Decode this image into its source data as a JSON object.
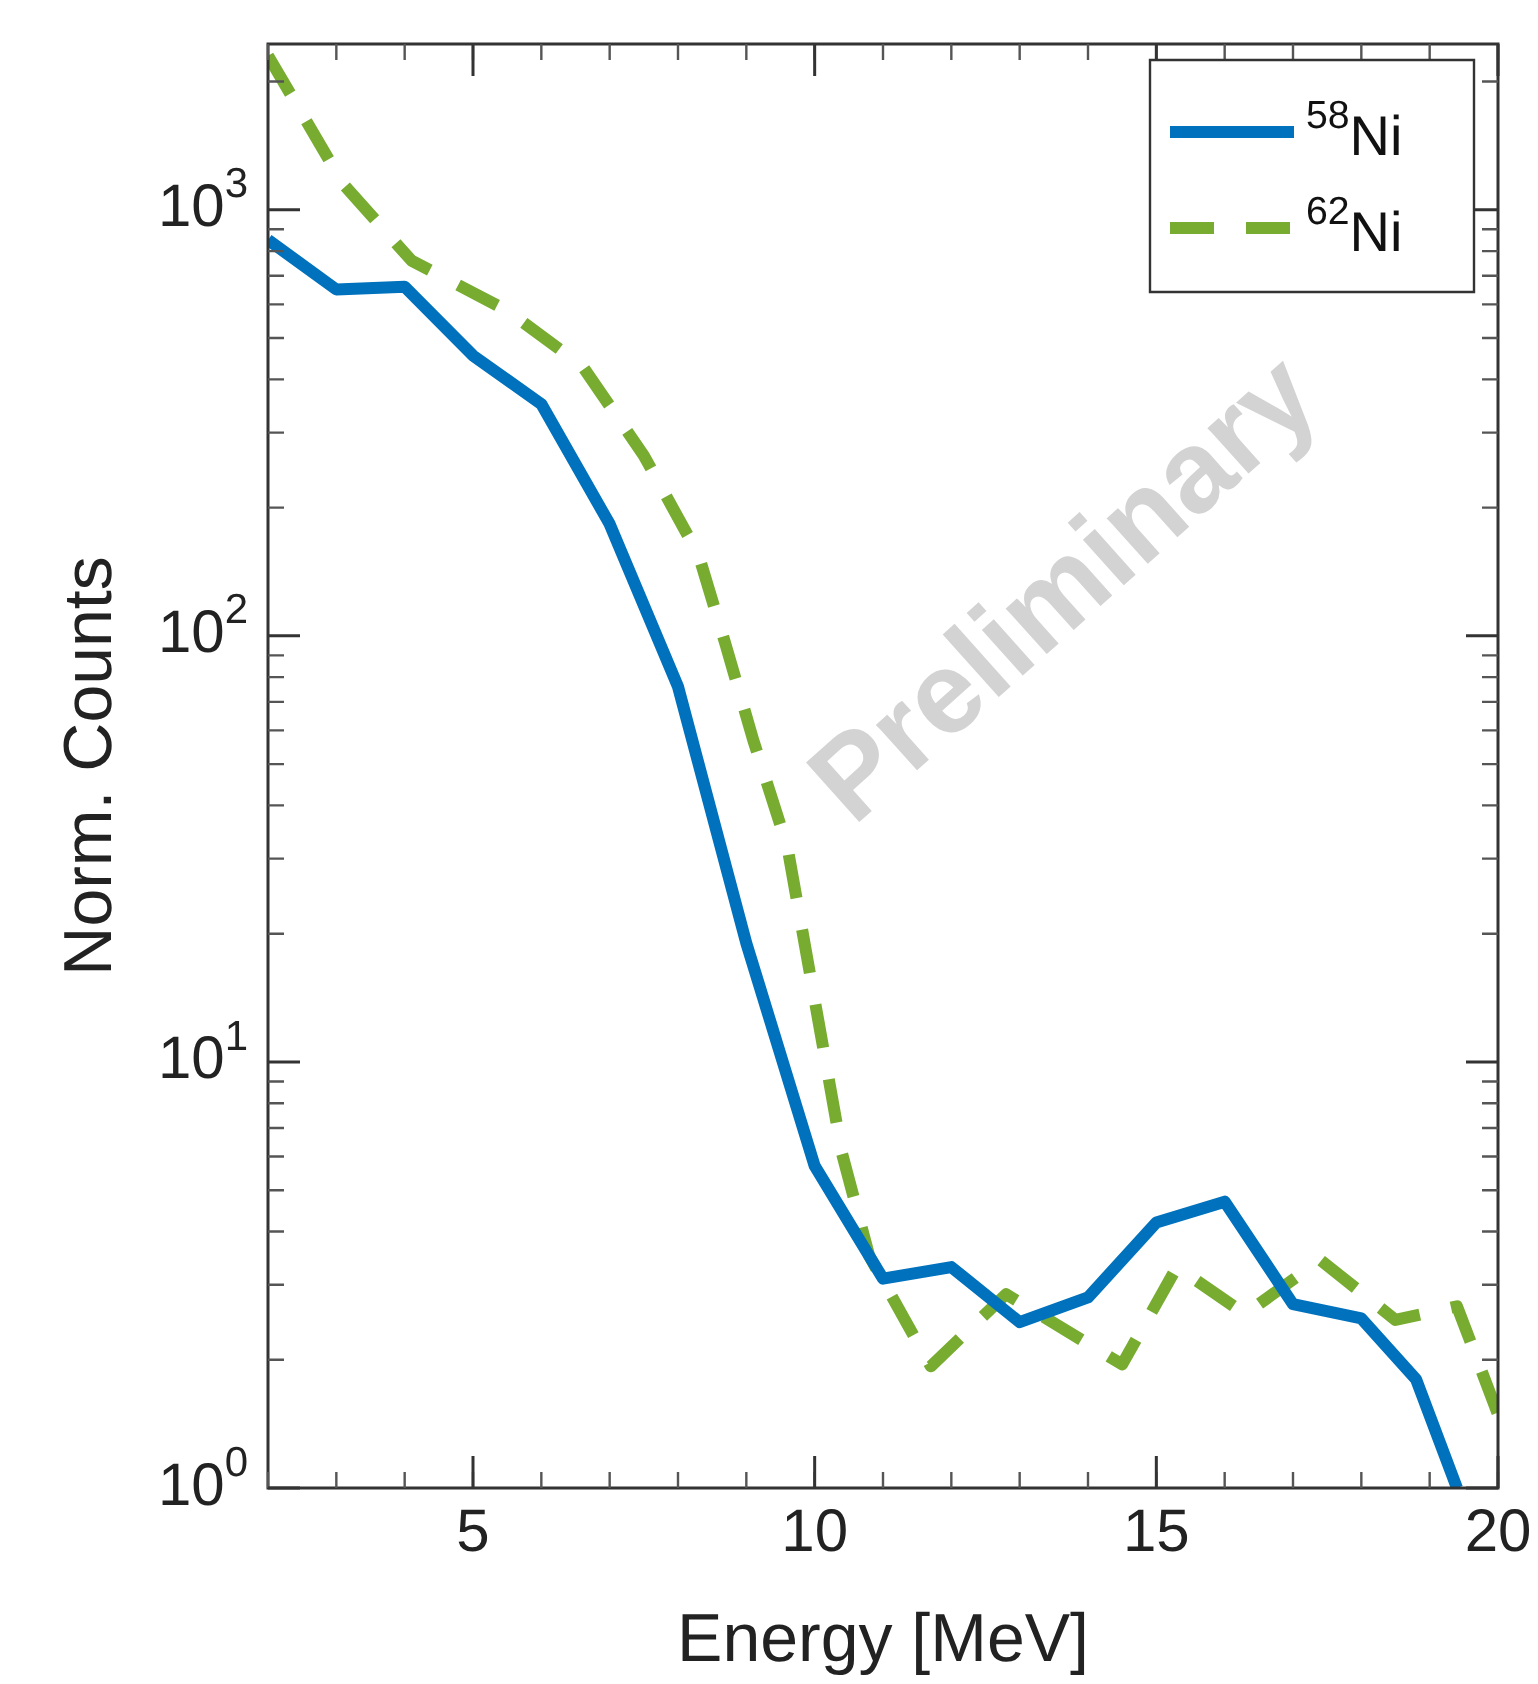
{
  "chart_data": {
    "type": "line",
    "xlabel": "Energy [MeV]",
    "ylabel": "Norm. Counts",
    "log": "y",
    "xlim": [
      2,
      20
    ],
    "xticks": [
      5,
      10,
      15,
      20
    ],
    "ylim": [
      1,
      2450
    ],
    "yticks": [
      {
        "value": 1,
        "label": "10$^{0}$"
      },
      {
        "value": 10,
        "label": "10$^{1}$"
      },
      {
        "value": 100,
        "label": "10$^{2}$"
      },
      {
        "value": 1000,
        "label": "10$^{3}$"
      }
    ],
    "grid": false,
    "legend": "top right",
    "marker": "none",
    "annotations": [
      "Preliminary"
    ],
    "series": [
      {
        "name": "$^{58}$Ni",
        "color": "#0072bd",
        "line_style": "solid",
        "x": [
          2,
          3,
          4,
          5,
          6,
          7,
          8,
          9,
          10,
          11,
          12,
          13,
          14,
          15,
          16,
          17,
          18,
          18.8,
          19.4
        ],
        "values": [
          850,
          650,
          660,
          455,
          350,
          183,
          76,
          19,
          5.7,
          3.1,
          3.3,
          2.45,
          2.8,
          4.2,
          4.7,
          2.7,
          2.5,
          1.8,
          1
        ]
      },
      {
        "name": "$^{62}$Ni",
        "color": "#77ac30",
        "line_style": "dashed",
        "x": [
          2,
          3.1,
          4.1,
          5.5,
          6.6,
          7.5,
          8.3,
          8.7,
          9.1,
          9.6,
          10.4,
          10.8,
          11.7,
          12.8,
          14.5,
          15.3,
          16.3,
          17.4,
          18.5,
          19.4,
          20
        ],
        "values": [
          2300,
          1150,
          760,
          580,
          430,
          265,
          155,
          95,
          57,
          32,
          6.1,
          3.5,
          1.93,
          2.85,
          1.95,
          3.3,
          2.56,
          3.43,
          2.48,
          2.67,
          1.49
        ]
      }
    ]
  }
}
